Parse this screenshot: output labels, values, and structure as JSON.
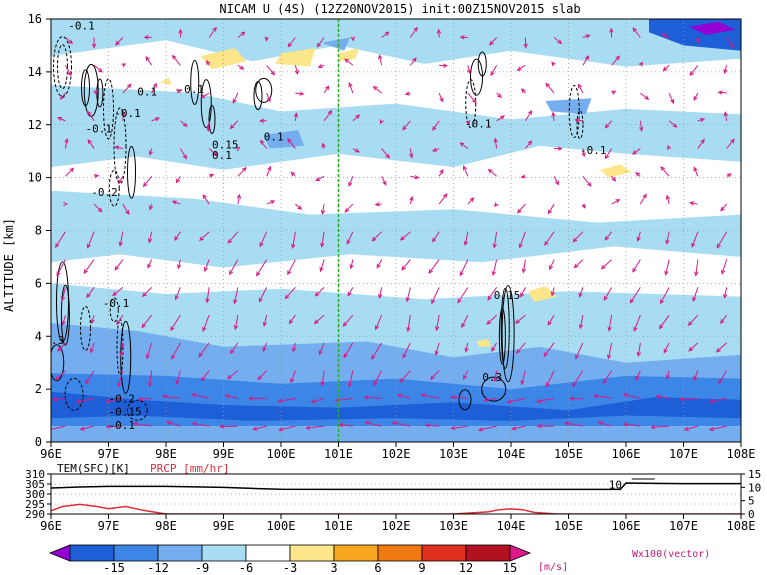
{
  "chart_data": [
    {
      "type": "heatmap",
      "title": "NICAM U (4S) (12Z20NOV2015) init:00Z15NOV2015 slab",
      "ylabel": "ALTITUDE [km]",
      "xlabel": "",
      "x_ticks": [
        "96E",
        "97E",
        "98E",
        "99E",
        "100E",
        "101E",
        "102E",
        "103E",
        "104E",
        "105E",
        "106E",
        "107E",
        "108E"
      ],
      "xlim": [
        96,
        108
      ],
      "y_ticks": [
        0,
        2,
        4,
        6,
        8,
        10,
        12,
        14,
        16
      ],
      "ylim": [
        0,
        16
      ],
      "grid": true,
      "marker_line_x": 101,
      "contour_labels": [
        {
          "text": "-0.1",
          "x": 96.3,
          "y": 15.6
        },
        {
          "text": "-0.1",
          "x": 96.6,
          "y": 11.7
        },
        {
          "text": "-0.1",
          "x": 97.1,
          "y": 12.3
        },
        {
          "text": "0.1",
          "x": 97.5,
          "y": 13.1
        },
        {
          "text": "-0.1",
          "x": 98.2,
          "y": 13.2
        },
        {
          "text": "-0.2",
          "x": 96.7,
          "y": 9.3
        },
        {
          "text": "0.15",
          "x": 98.8,
          "y": 11.1
        },
        {
          "text": "0.1",
          "x": 98.8,
          "y": 10.7
        },
        {
          "text": "0.1",
          "x": 99.7,
          "y": 11.4
        },
        {
          "text": "-0.1",
          "x": 103.2,
          "y": 11.9
        },
        {
          "text": "-0.1",
          "x": 105.2,
          "y": 10.9
        },
        {
          "text": "-0.1",
          "x": 96.9,
          "y": 5.1
        },
        {
          "text": "0.15",
          "x": 103.7,
          "y": 5.4
        },
        {
          "text": "0.3",
          "x": 103.5,
          "y": 2.3
        },
        {
          "text": "-0.2",
          "x": 97.0,
          "y": 1.5
        },
        {
          "text": "-0.15",
          "x": 97.0,
          "y": 1.0
        },
        {
          "text": "-0.1",
          "x": 97.0,
          "y": 0.5
        },
        {
          "text": ".3",
          "x": 96.0,
          "y": 3.7
        }
      ]
    },
    {
      "type": "line",
      "title": "",
      "labels": [
        "TEM(SFC)[K]",
        "PRCP [mm/hr]"
      ],
      "x_ticks": [
        "96E",
        "97E",
        "98E",
        "99E",
        "100E",
        "101E",
        "102E",
        "103E",
        "104E",
        "105E",
        "106E",
        "107E",
        "108E"
      ],
      "xlim": [
        96,
        108
      ],
      "left_axis_ticks": [
        290,
        295,
        300,
        305,
        310
      ],
      "right_axis_ticks": [
        0,
        5,
        10,
        15
      ],
      "series": [
        {
          "name": "TEM(SFC)[K]",
          "color": "#000000",
          "x": [
            96,
            96.5,
            97,
            98,
            99,
            99.5,
            100,
            101,
            102,
            103,
            104,
            105,
            105.9,
            106,
            106.5,
            107,
            108
          ],
          "y": [
            303,
            303.5,
            303.8,
            303.8,
            303.3,
            302.8,
            302.4,
            302.3,
            302.3,
            302.3,
            302.3,
            302.3,
            302.3,
            305.5,
            305.3,
            305.2,
            305.2
          ]
        },
        {
          "name": "PRCP [mm/hr]",
          "color": "#d8303a",
          "x": [
            96,
            96.2,
            96.5,
            96.8,
            97,
            97.3,
            97.6,
            98,
            99,
            100,
            103,
            103.6,
            103.8,
            104,
            104.2,
            104.4,
            104.8,
            105,
            108
          ],
          "y": [
            1.2,
            2.8,
            3.6,
            2.8,
            2.0,
            2.8,
            1.4,
            0.0,
            0.0,
            0.0,
            0.0,
            0.8,
            1.6,
            1.9,
            1.6,
            0.6,
            0.0,
            0.0,
            0.0
          ]
        }
      ],
      "annotations": [
        {
          "text": "10",
          "x": 105.7,
          "y": 304.8
        }
      ]
    }
  ],
  "colorbar": {
    "tick_labels": [
      "-15",
      "-12",
      "-9",
      "-6",
      "-3",
      "3",
      "6",
      "9",
      "12",
      "15"
    ],
    "unit": "[m/s]",
    "colors": [
      "#9400d3",
      "#1e5fd8",
      "#3c86e8",
      "#74aeef",
      "#a8dcf2",
      "#ffffff",
      "#fde68a",
      "#f7a61f",
      "#ef7a12",
      "#e0301e",
      "#b2121f",
      "#e0198a"
    ]
  },
  "vector_label": "Wx100(vector)",
  "vector_color": "#d81b84"
}
